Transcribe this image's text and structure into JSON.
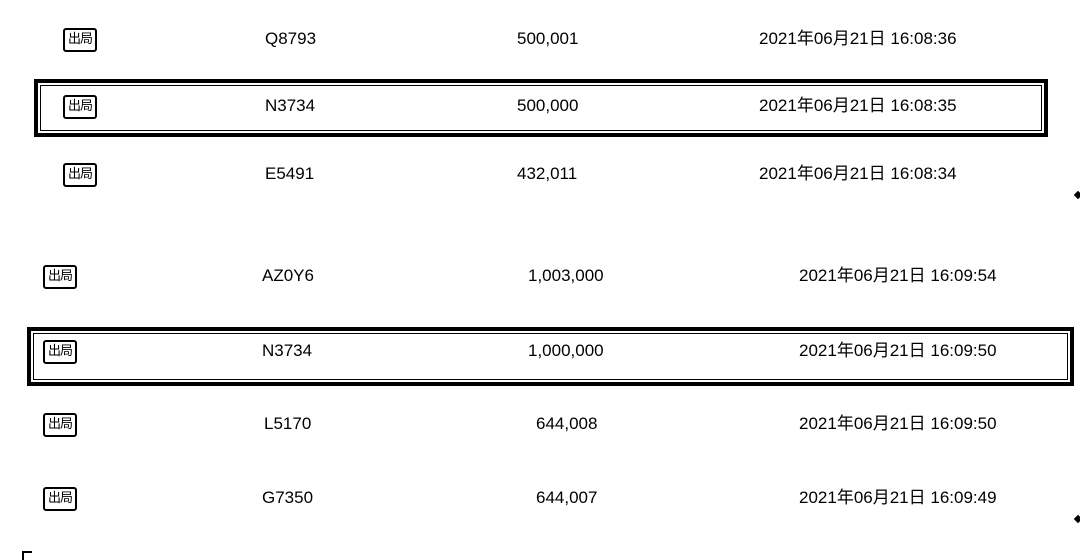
{
  "tables": [
    {
      "rows": [
        {
          "status": "出局",
          "id": "Q8793",
          "amount": "500,001",
          "time": "2021年06月21日 16:08:36"
        },
        {
          "status": "出局",
          "id": "N3734",
          "amount": "500,000",
          "time": "2021年06月21日 16:08:35"
        },
        {
          "status": "出局",
          "id": "E5491",
          "amount": "432,011",
          "time": "2021年06月21日 16:08:34"
        }
      ]
    },
    {
      "rows": [
        {
          "status": "出局",
          "id": "AZ0Y6",
          "amount": "1,003,000",
          "time": "2021年06月21日 16:09:54"
        },
        {
          "status": "出局",
          "id": "N3734",
          "amount": "1,000,000",
          "time": "2021年06月21日 16:09:50"
        },
        {
          "status": "出局",
          "id": "L5170",
          "amount": "644,008",
          "time": "2021年06月21日 16:09:50"
        },
        {
          "status": "出局",
          "id": "G7350",
          "amount": "644,007",
          "time": "2021年06月21日 16:09:49"
        }
      ]
    }
  ]
}
